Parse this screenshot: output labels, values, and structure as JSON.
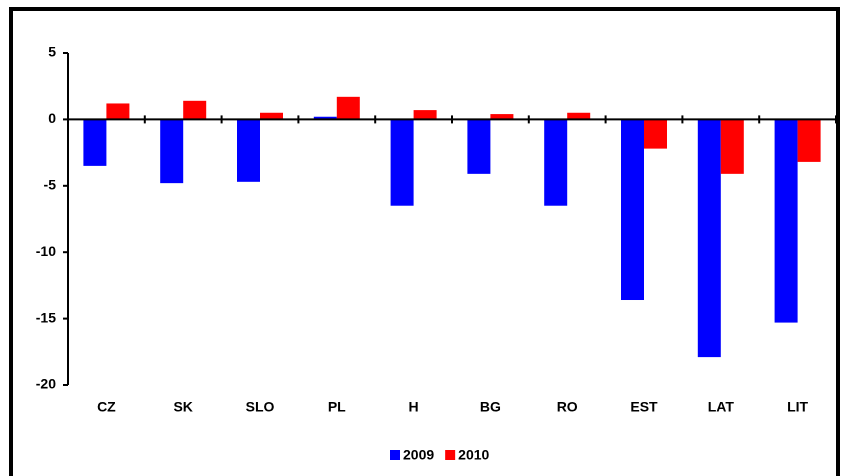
{
  "chart_data": {
    "type": "bar",
    "categories": [
      "CZ",
      "SK",
      "SLO",
      "PL",
      "H",
      "BG",
      "RO",
      "EST",
      "LAT",
      "LIT"
    ],
    "series": [
      {
        "name": "2009",
        "color": "#0000ff",
        "values": [
          -3.5,
          -4.8,
          -4.7,
          0.2,
          -6.5,
          -4.1,
          -6.5,
          -13.6,
          -17.9,
          -15.3
        ]
      },
      {
        "name": "2010",
        "color": "#ff0000",
        "values": [
          1.2,
          1.4,
          0.5,
          1.7,
          0.7,
          0.4,
          0.5,
          -2.2,
          -4.1,
          -3.2
        ]
      }
    ],
    "ylim": [
      -20,
      5
    ],
    "yticks": [
      -20,
      -15,
      -10,
      -5,
      0,
      5
    ]
  }
}
